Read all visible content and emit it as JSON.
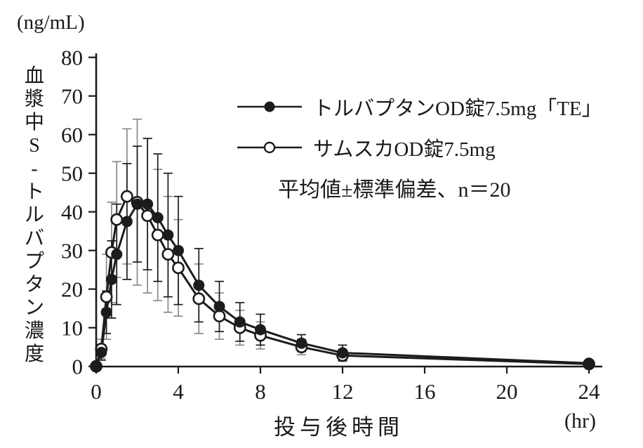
{
  "chart_data": {
    "type": "line",
    "title": "",
    "xlabel": "投与後時間",
    "x_unit": "(hr)",
    "ylabel": "血漿中S-トルバプタン濃度",
    "y_unit": "(ng/mL)",
    "annotation": "平均値±標準偏差、n＝20",
    "grid": false,
    "legend_position": "inside-top-right",
    "xlim": [
      0,
      24
    ],
    "ylim": [
      0,
      80
    ],
    "x_ticks": [
      0,
      4,
      8,
      12,
      16,
      20,
      24
    ],
    "y_ticks": [
      0,
      10,
      20,
      30,
      40,
      50,
      60,
      70,
      80
    ],
    "x": [
      0,
      0.25,
      0.5,
      0.75,
      1,
      1.5,
      2,
      2.5,
      3,
      3.5,
      4,
      5,
      6,
      7,
      8,
      10,
      12,
      24
    ],
    "series": [
      {
        "name": "サムスカOD錠7.5mg",
        "marker": "open-circle",
        "line_color": "#1c1c1c",
        "errorbar_color": "#8a8a8a",
        "values": [
          0,
          4.5,
          18,
          29.5,
          38,
          44,
          42.5,
          39,
          34,
          29,
          25.5,
          17.5,
          13,
          10,
          8,
          5,
          2.8,
          0.6
        ],
        "sd": [
          0,
          2.5,
          11,
          13,
          15,
          17.5,
          21.5,
          20,
          17,
          15,
          12.5,
          9,
          6,
          4.5,
          3.5,
          2,
          1.5,
          0.5
        ]
      },
      {
        "name": "トルバプタンOD錠7.5mg「TE」",
        "marker": "filled-circle",
        "line_color": "#1c1c1c",
        "errorbar_color": "#1c1c1c",
        "values": [
          0,
          3.6,
          14,
          22.5,
          29,
          37.5,
          42,
          42,
          38.5,
          34,
          30,
          21,
          15.5,
          11.5,
          9.5,
          6,
          3.5,
          0.8
        ],
        "sd": [
          0,
          2,
          5.5,
          10,
          13,
          15,
          15,
          17,
          16.5,
          16,
          14,
          9.5,
          6.5,
          5,
          4,
          2.2,
          2,
          0.6
        ]
      }
    ],
    "error_bars": "mean ± SD, caps on both ends",
    "n": 20
  }
}
